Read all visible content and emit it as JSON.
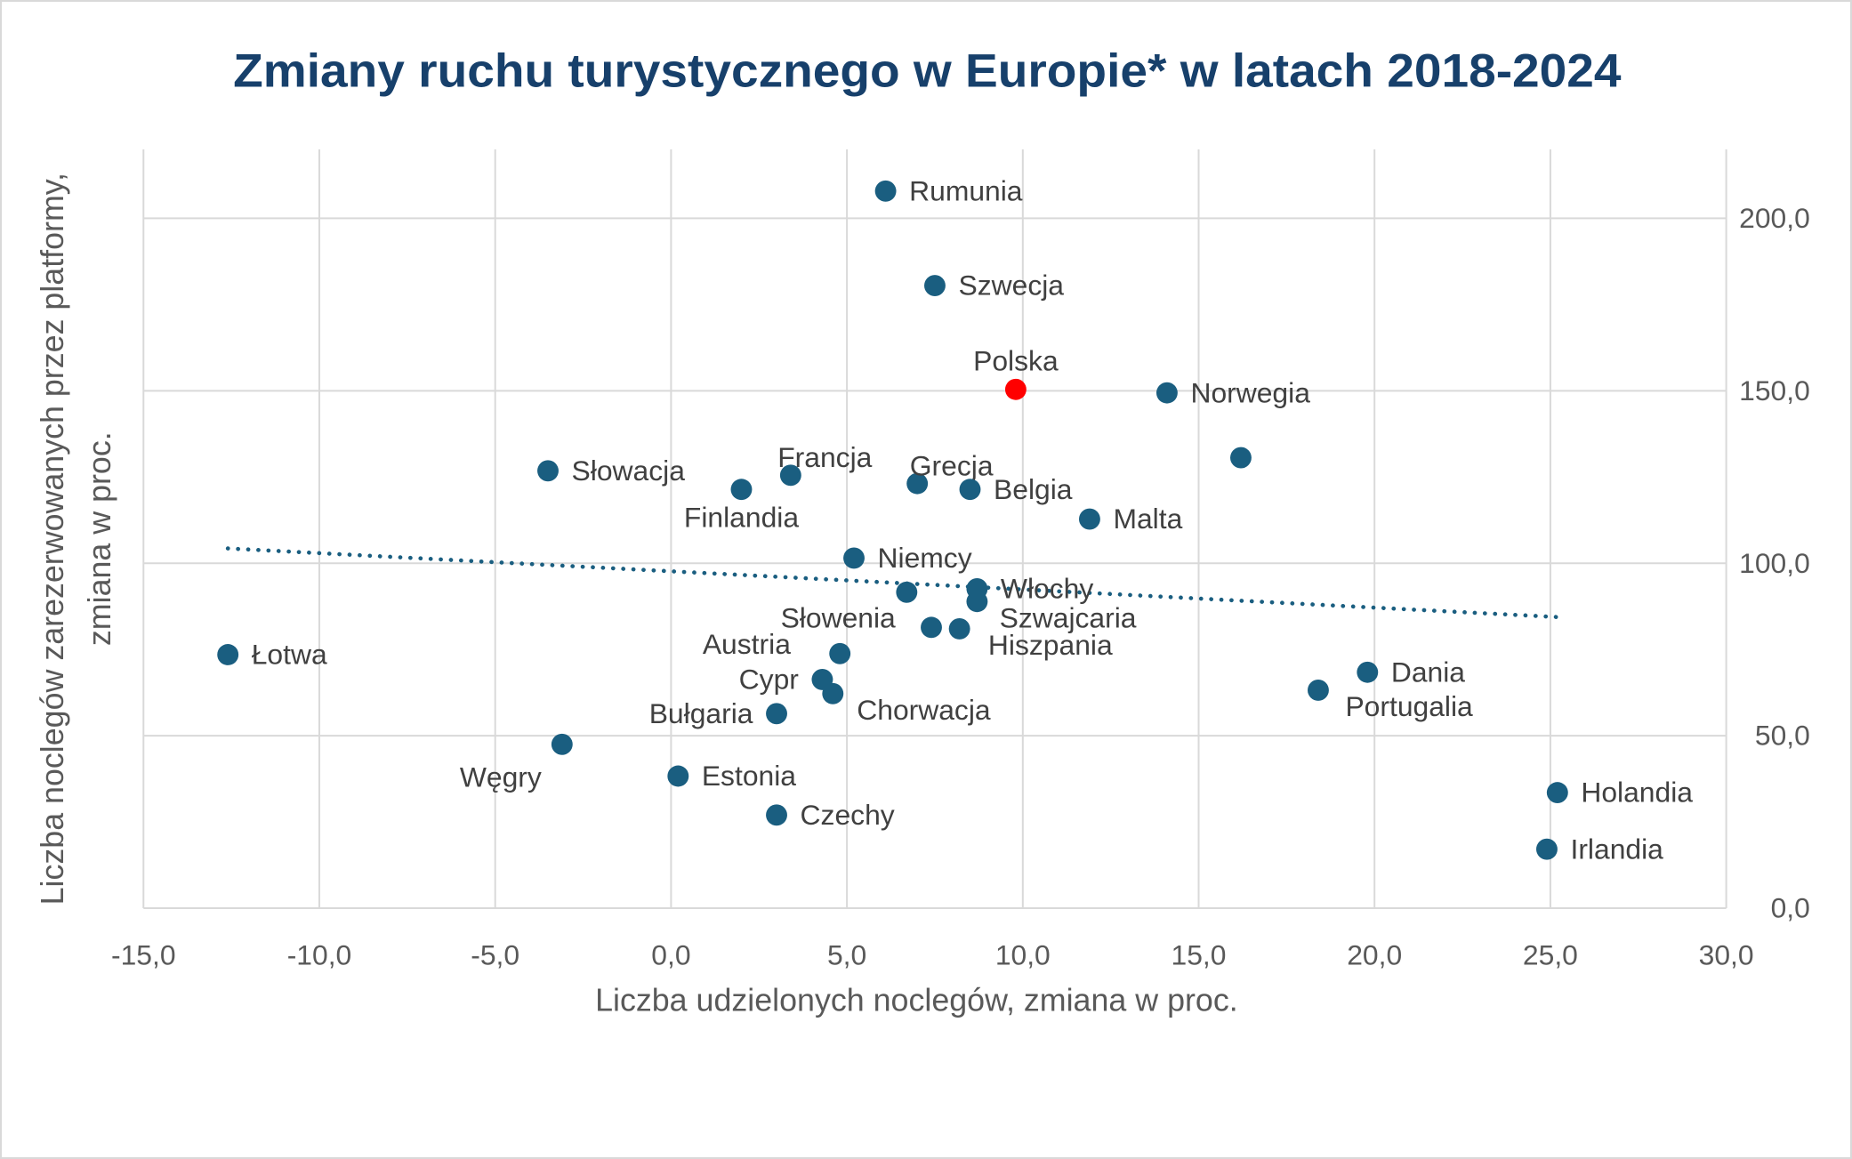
{
  "chart_data": {
    "type": "scatter",
    "title": "Zmiany ruchu turystycznego w Europie* w latach 2018-2024",
    "xlabel": "Liczba udzielonych noclegów, zmiana w proc.",
    "ylabel_lines": [
      "Liczba noclegów zarezerwowanych przez platformy,",
      "zmiana w proc."
    ],
    "xlim": [
      -15,
      30
    ],
    "ylim": [
      0,
      220
    ],
    "x_ticks": [
      "-15,0",
      "-10,0",
      "-5,0",
      "0,0",
      "5,0",
      "10,0",
      "15,0",
      "20,0",
      "25,0",
      "30,0"
    ],
    "x_tick_values": [
      -15,
      -10,
      -5,
      0,
      5,
      10,
      15,
      20,
      25,
      30
    ],
    "y_ticks": [
      "0,0",
      "50,0",
      "100,0",
      "150,0",
      "200,0"
    ],
    "y_tick_values": [
      0,
      50,
      100,
      150,
      200
    ],
    "y_axis_side": "right",
    "grid": true,
    "colors": {
      "point": "#1a5e80",
      "highlight": "#ff0000",
      "trend": "#1a5e80",
      "grid": "#d9d9d9",
      "title": "#17406b"
    },
    "trendline": {
      "style": "dotted",
      "from": [
        -12.6,
        104.3
      ],
      "to": [
        25.2,
        84.4
      ]
    },
    "points": [
      {
        "name": "Rumunia",
        "x": 6.1,
        "y": 207.9,
        "label": "right"
      },
      {
        "name": "Szwecja",
        "x": 7.5,
        "y": 180.5,
        "label": "right"
      },
      {
        "name": "Polska",
        "x": 9.8,
        "y": 150.4,
        "label": "above",
        "highlight": true
      },
      {
        "name": "Norwegia",
        "x": 14.1,
        "y": 149.4,
        "label": "right"
      },
      {
        "name": "",
        "x": 16.2,
        "y": 130.6,
        "label": "none"
      },
      {
        "name": "Słowacja",
        "x": -3.5,
        "y": 126.8,
        "label": "right"
      },
      {
        "name": "Francja",
        "x": 3.4,
        "y": 125.5,
        "label": "above-right"
      },
      {
        "name": "Grecja",
        "x": 7.0,
        "y": 123.1,
        "label": "above-right"
      },
      {
        "name": "Finlandia",
        "x": 2.0,
        "y": 121.4,
        "label": "below"
      },
      {
        "name": "Belgia",
        "x": 8.5,
        "y": 121.4,
        "label": "right"
      },
      {
        "name": "Malta",
        "x": 11.9,
        "y": 112.8,
        "label": "right"
      },
      {
        "name": "Niemcy",
        "x": 5.2,
        "y": 101.5,
        "label": "right"
      },
      {
        "name": "",
        "x": 6.7,
        "y": 91.6,
        "label": "none"
      },
      {
        "name": "Włochy",
        "x": 8.7,
        "y": 92.6,
        "label": "right"
      },
      {
        "name": "Szwajcaria",
        "x": 8.7,
        "y": 88.9,
        "label": "below-right"
      },
      {
        "name": "Słowenia",
        "x": 7.4,
        "y": 81.4,
        "label": "above-left"
      },
      {
        "name": "Hiszpania",
        "x": 8.2,
        "y": 81.0,
        "label": "below-right"
      },
      {
        "name": "Austria",
        "x": 4.8,
        "y": 73.8,
        "label": "above-left"
      },
      {
        "name": "Łotwa",
        "x": -12.6,
        "y": 73.5,
        "label": "right"
      },
      {
        "name": "Dania",
        "x": 19.8,
        "y": 68.4,
        "label": "right"
      },
      {
        "name": "Cypr",
        "x": 4.3,
        "y": 66.3,
        "label": "left"
      },
      {
        "name": "Portugalia",
        "x": 18.4,
        "y": 63.2,
        "label": "below-right"
      },
      {
        "name": "Chorwacja",
        "x": 4.6,
        "y": 62.2,
        "label": "below-right"
      },
      {
        "name": "Bułgaria",
        "x": 3.0,
        "y": 56.4,
        "label": "left"
      },
      {
        "name": "Węgry",
        "x": -3.1,
        "y": 47.5,
        "label": "below-left"
      },
      {
        "name": "Estonia",
        "x": 0.2,
        "y": 38.3,
        "label": "right"
      },
      {
        "name": "Holandia",
        "x": 25.2,
        "y": 33.5,
        "label": "right"
      },
      {
        "name": "Czechy",
        "x": 3.0,
        "y": 27.0,
        "label": "right"
      },
      {
        "name": "Irlandia",
        "x": 24.9,
        "y": 17.1,
        "label": "right"
      }
    ]
  }
}
